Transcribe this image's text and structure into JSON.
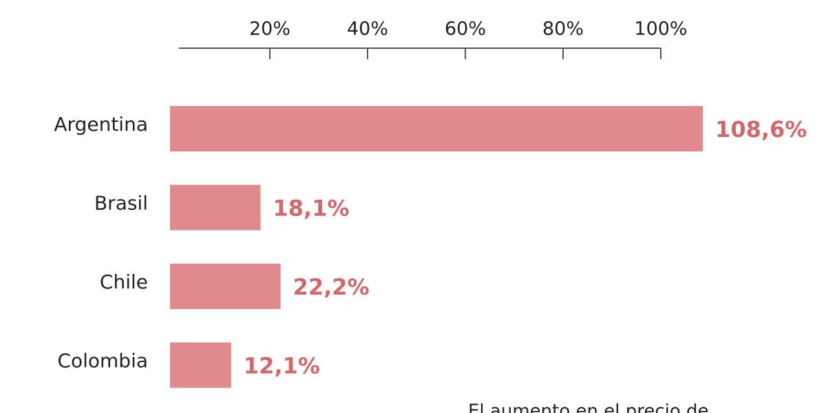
{
  "chart_data": {
    "type": "bar",
    "orientation": "horizontal",
    "categories": [
      "Argentina",
      "Brasil",
      "Chile",
      "Colombia"
    ],
    "values": [
      108.6,
      18.1,
      22.2,
      12.1
    ],
    "value_labels": [
      "108,6%",
      "18,1%",
      "22,2%",
      "12,1%"
    ],
    "color": "#e08a8d",
    "xlim": [
      0,
      100
    ],
    "xticks": [
      {
        "value": 20,
        "label": "20%"
      },
      {
        "value": 40,
        "label": "40%"
      },
      {
        "value": 60,
        "label": "60%"
      },
      {
        "value": 80,
        "label": "80%"
      },
      {
        "value": 100,
        "label": "100%"
      }
    ],
    "annotation": "El aumento en el precio de"
  }
}
